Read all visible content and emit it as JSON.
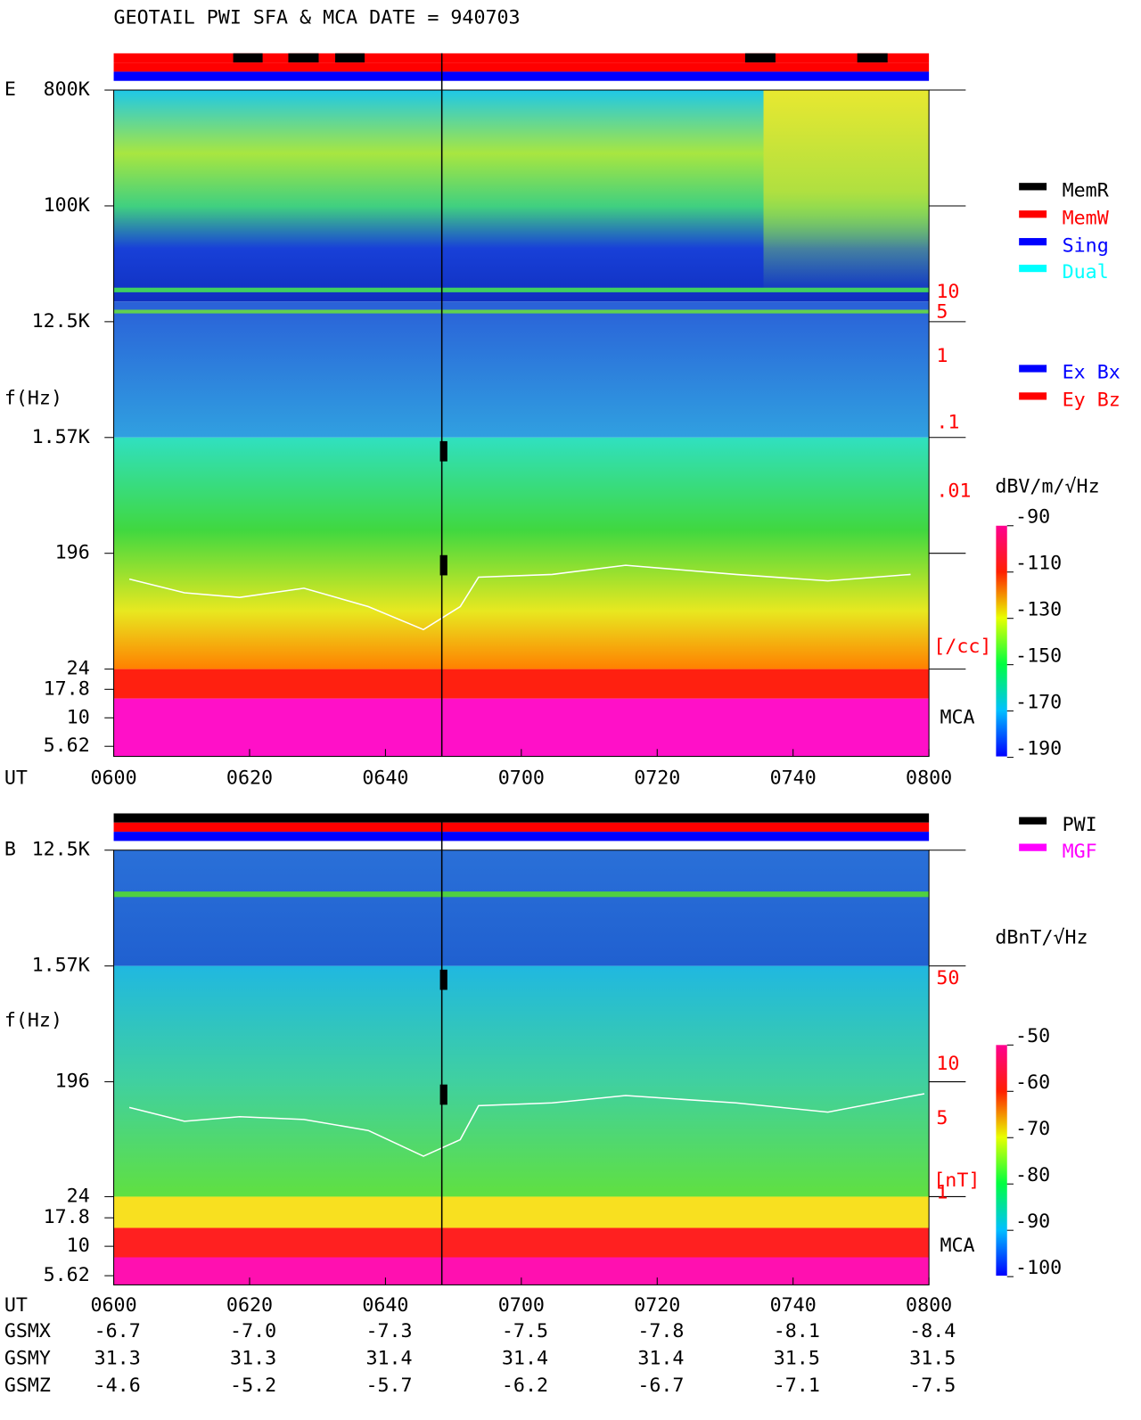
{
  "title": "GEOTAIL  PWI SFA & MCA   DATE = 940703",
  "panels": [
    {
      "label": "E",
      "y_axis_label": "f(Hz)",
      "time_label": "UT",
      "freq_labels": [
        "800K",
        "100K",
        "12.5K",
        "1.57K",
        "196",
        "24",
        "17.8",
        "10",
        "5.62"
      ],
      "time_ticks": [
        "0600",
        "0620",
        "0640",
        "0700",
        "0720",
        "0740",
        "0800"
      ],
      "density_labels": [
        "10",
        "5",
        "1",
        ".1",
        ".01"
      ],
      "density_unit": "[/cc]",
      "mca_label": "MCA",
      "colorbar_unit": "dBV/m/√Hz",
      "colorbar_ticks": [
        "-90",
        "-110",
        "-130",
        "-150",
        "-170",
        "-190"
      ],
      "legend": [
        {
          "name": "MemR",
          "color": "#000000"
        },
        {
          "name": "MemW",
          "color": "#ff0000"
        },
        {
          "name": "Sing",
          "color": "#0000ff"
        },
        {
          "name": "Dual",
          "color": "#00ffff"
        },
        {
          "name": "Ex Bx",
          "color": "#0000ff"
        },
        {
          "name": "Ey Bz",
          "color": "#ff0000"
        }
      ]
    },
    {
      "label": "B",
      "y_axis_label": "f(Hz)",
      "time_label": "UT",
      "freq_labels": [
        "12.5K",
        "1.57K",
        "196",
        "24",
        "17.8",
        "10",
        "5.62"
      ],
      "time_ticks": [
        "0600",
        "0620",
        "0640",
        "0700",
        "0720",
        "0740",
        "0800"
      ],
      "density_labels": [
        "50",
        "10",
        "5",
        "1"
      ],
      "density_unit": "[nT]",
      "mca_label": "MCA",
      "colorbar_unit": "dBnT/√Hz",
      "colorbar_ticks": [
        "-50",
        "-60",
        "-70",
        "-80",
        "-90",
        "-100"
      ],
      "legend": [
        {
          "name": "PWI",
          "color": "#000000"
        },
        {
          "name": "MGF",
          "color": "#ff00ff"
        }
      ]
    }
  ],
  "orbit": {
    "rows": [
      {
        "label": "GSMX",
        "values": [
          "-6.7",
          "-7.0",
          "-7.3",
          "-7.5",
          "-7.8",
          "-8.1",
          "-8.4"
        ]
      },
      {
        "label": "GSMY",
        "values": [
          "31.3",
          "31.3",
          "31.4",
          "31.4",
          "31.4",
          "31.5",
          "31.5"
        ]
      },
      {
        "label": "GSMZ",
        "values": [
          "-4.6",
          "-5.2",
          "-5.7",
          "-6.2",
          "-6.7",
          "-7.1",
          "-7.5"
        ]
      }
    ]
  }
}
